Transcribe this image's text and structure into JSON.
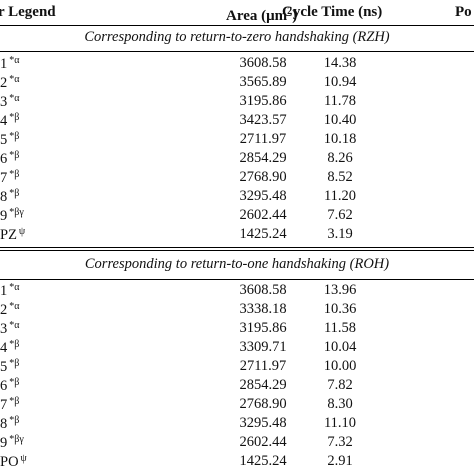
{
  "headers": {
    "legend": "r Legend",
    "area_main": "Area (μm",
    "area_exp": "2",
    "area_close": ")",
    "cycle": "Cycle Time (ns)",
    "partial": "Po"
  },
  "rzh": {
    "title": "Corresponding to return-to-zero handshaking (RZH)",
    "rows": [
      {
        "legend": "1",
        "mark": "*α",
        "area": "3608.58",
        "cycle": "14.38"
      },
      {
        "legend": "2",
        "mark": "*α",
        "area": "3565.89",
        "cycle": "10.94"
      },
      {
        "legend": "3",
        "mark": "*α",
        "area": "3195.86",
        "cycle": "11.78"
      },
      {
        "legend": "4",
        "mark": "*β",
        "area": "3423.57",
        "cycle": "10.40"
      },
      {
        "legend": "5",
        "mark": "*β",
        "area": "2711.97",
        "cycle": "10.18"
      },
      {
        "legend": "6",
        "mark": "*β",
        "area": "2854.29",
        "cycle": "8.26"
      },
      {
        "legend": "7",
        "mark": "*β",
        "area": "2768.90",
        "cycle": "8.52"
      },
      {
        "legend": "8",
        "mark": "*β",
        "area": "3295.48",
        "cycle": "11.20"
      },
      {
        "legend": "9",
        "mark": "*βγ",
        "area": "2602.44",
        "cycle": "7.62"
      },
      {
        "legend": "PZ",
        "mark": "ψ",
        "area": "1425.24",
        "cycle": "3.19"
      }
    ]
  },
  "roh": {
    "title": "Corresponding to return-to-one handshaking (ROH)",
    "rows": [
      {
        "legend": "1",
        "mark": "*α",
        "area": "3608.58",
        "cycle": "13.96"
      },
      {
        "legend": "2",
        "mark": "*α",
        "area": "3338.18",
        "cycle": "10.36"
      },
      {
        "legend": "3",
        "mark": "*α",
        "area": "3195.86",
        "cycle": "11.58"
      },
      {
        "legend": "4",
        "mark": "*β",
        "area": "3309.71",
        "cycle": "10.04"
      },
      {
        "legend": "5",
        "mark": "*β",
        "area": "2711.97",
        "cycle": "10.00"
      },
      {
        "legend": "6",
        "mark": "*β",
        "area": "2854.29",
        "cycle": "7.82"
      },
      {
        "legend": "7",
        "mark": "*β",
        "area": "2768.90",
        "cycle": "8.30"
      },
      {
        "legend": "8",
        "mark": "*β",
        "area": "3295.48",
        "cycle": "11.10"
      },
      {
        "legend": "9",
        "mark": "*βγ",
        "area": "2602.44",
        "cycle": "7.32"
      },
      {
        "legend": "PO",
        "mark": "ψ",
        "area": "1425.24",
        "cycle": "2.91"
      }
    ]
  }
}
